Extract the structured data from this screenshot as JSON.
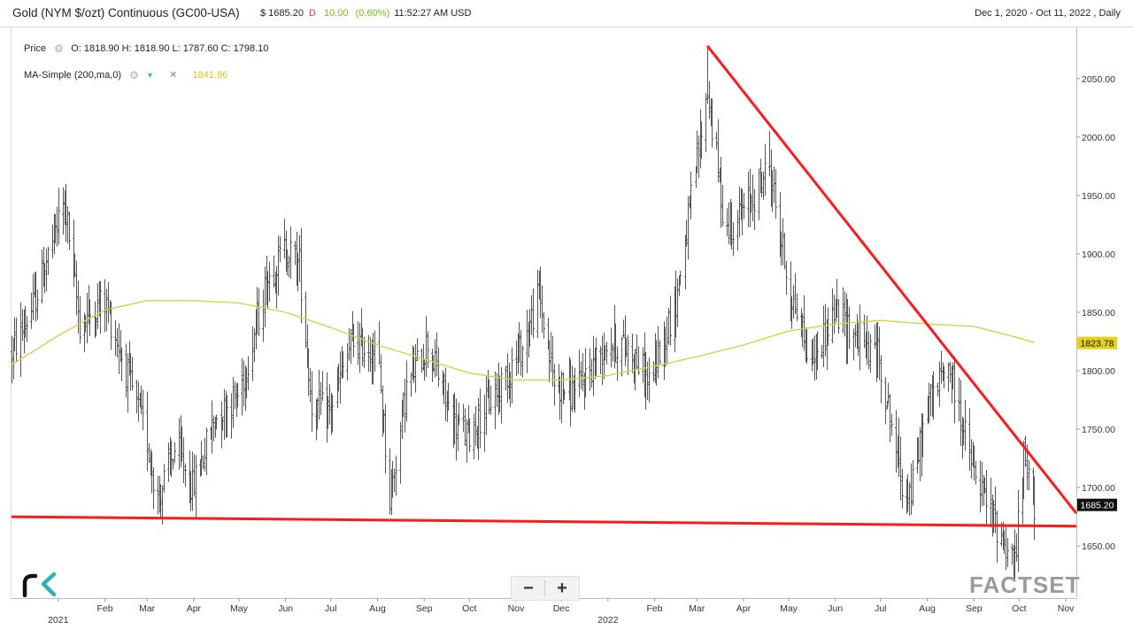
{
  "header": {
    "title": "Gold (NYM $/ozt) Continuous (GC00-USA)",
    "price": "$ 1685.20",
    "direction": "D",
    "change": "10.00",
    "change_pct": "(0.60%)",
    "time": "11:52:27 AM USD",
    "date_range": "Dec 1, 2020 - Oct 11, 2022 , Daily"
  },
  "legend": {
    "price_label": "Price",
    "ohlc": "O: 1818.90 H: 1818.90 L: 1787.60 C: 1798.10",
    "ma_label": "MA-Simple (200,ma,0)",
    "ma_value": "1841.96"
  },
  "badges": {
    "ma_last": "1823.78",
    "price_last": "1685.20"
  },
  "branding": {
    "factset": "FACTSET"
  },
  "zoom": {
    "minus": "−",
    "plus": "+"
  },
  "colors": {
    "price_bars": "#555555",
    "moving_average": "#d9cf4a",
    "trendlines": "#ff1a1a",
    "price_badge": "#111111",
    "ma_badge": "#e4d21a"
  },
  "chart_data": {
    "type": "ohlc-bar",
    "title": "Gold (NYM $/ozt) Continuous (GC00-USA)",
    "y_axis_side": "right",
    "ylim": [
      1610,
      2090
    ],
    "y_ticks": [
      1650,
      1700,
      1750,
      1800,
      1850,
      1900,
      1950,
      2000,
      2050
    ],
    "y_tick_labels": [
      "1650.00",
      "1700.00",
      "1750.00",
      "1800.00",
      "1850.00",
      "1900.00",
      "1950.00",
      "2000.00",
      "2050.00"
    ],
    "x_range": [
      "2020-12-01",
      "2022-11-08"
    ],
    "x_ticks": [
      {
        "date": "2021-01-01",
        "label": "2021",
        "year_label": true
      },
      {
        "date": "2021-02-01",
        "label": "Feb"
      },
      {
        "date": "2021-03-01",
        "label": "Mar"
      },
      {
        "date": "2021-04-01",
        "label": "Apr"
      },
      {
        "date": "2021-05-01",
        "label": "May"
      },
      {
        "date": "2021-06-01",
        "label": "Jun"
      },
      {
        "date": "2021-07-01",
        "label": "Jul"
      },
      {
        "date": "2021-08-01",
        "label": "Aug"
      },
      {
        "date": "2021-09-01",
        "label": "Sep"
      },
      {
        "date": "2021-10-01",
        "label": "Oct"
      },
      {
        "date": "2021-11-01",
        "label": "Nov"
      },
      {
        "date": "2021-12-01",
        "label": "Dec"
      },
      {
        "date": "2022-01-01",
        "label": "2022",
        "year_label": true
      },
      {
        "date": "2022-02-01",
        "label": "Feb"
      },
      {
        "date": "2022-03-01",
        "label": "Mar"
      },
      {
        "date": "2022-04-01",
        "label": "Apr"
      },
      {
        "date": "2022-05-01",
        "label": "May"
      },
      {
        "date": "2022-06-01",
        "label": "Jun"
      },
      {
        "date": "2022-07-01",
        "label": "Jul"
      },
      {
        "date": "2022-08-01",
        "label": "Aug"
      },
      {
        "date": "2022-09-01",
        "label": "Sep"
      },
      {
        "date": "2022-10-01",
        "label": "Oct"
      },
      {
        "date": "2022-11-01",
        "label": "Nov"
      }
    ],
    "price_path": [
      [
        "2020-12-01",
        1815
      ],
      [
        "2020-12-15",
        1855
      ],
      [
        "2021-01-05",
        1945
      ],
      [
        "2021-01-15",
        1840
      ],
      [
        "2021-02-01",
        1860
      ],
      [
        "2021-02-15",
        1800
      ],
      [
        "2021-03-01",
        1740
      ],
      [
        "2021-03-08",
        1690
      ],
      [
        "2021-03-20",
        1735
      ],
      [
        "2021-03-31",
        1700
      ],
      [
        "2021-04-15",
        1760
      ],
      [
        "2021-05-01",
        1780
      ],
      [
        "2021-05-20",
        1880
      ],
      [
        "2021-06-01",
        1905
      ],
      [
        "2021-06-10",
        1890
      ],
      [
        "2021-06-18",
        1770
      ],
      [
        "2021-06-30",
        1765
      ],
      [
        "2021-07-15",
        1825
      ],
      [
        "2021-08-01",
        1815
      ],
      [
        "2021-08-09",
        1690
      ],
      [
        "2021-08-20",
        1785
      ],
      [
        "2021-09-03",
        1825
      ],
      [
        "2021-09-20",
        1755
      ],
      [
        "2021-09-30",
        1745
      ],
      [
        "2021-10-20",
        1785
      ],
      [
        "2021-11-05",
        1820
      ],
      [
        "2021-11-16",
        1865
      ],
      [
        "2021-11-26",
        1790
      ],
      [
        "2021-12-10",
        1780
      ],
      [
        "2021-12-31",
        1825
      ],
      [
        "2022-01-15",
        1820
      ],
      [
        "2022-01-28",
        1790
      ],
      [
        "2022-02-15",
        1860
      ],
      [
        "2022-03-08",
        2040
      ],
      [
        "2022-03-20",
        1920
      ],
      [
        "2022-04-01",
        1935
      ],
      [
        "2022-04-18",
        1975
      ],
      [
        "2022-05-01",
        1870
      ],
      [
        "2022-05-16",
        1810
      ],
      [
        "2022-06-01",
        1850
      ],
      [
        "2022-06-15",
        1830
      ],
      [
        "2022-06-30",
        1810
      ],
      [
        "2022-07-15",
        1705
      ],
      [
        "2022-07-21",
        1695
      ],
      [
        "2022-08-01",
        1770
      ],
      [
        "2022-08-15",
        1805
      ],
      [
        "2022-09-01",
        1710
      ],
      [
        "2022-09-15",
        1670
      ],
      [
        "2022-09-28",
        1635
      ],
      [
        "2022-10-04",
        1725
      ],
      [
        "2022-10-11",
        1685
      ]
    ],
    "notable_extremes": [
      {
        "date": "2021-01-06",
        "high": 1960
      },
      {
        "date": "2021-03-08",
        "low": 1677
      },
      {
        "date": "2021-03-31",
        "low": 1680
      },
      {
        "date": "2021-06-01",
        "high": 1920
      },
      {
        "date": "2021-08-09",
        "low": 1677
      },
      {
        "date": "2022-03-08",
        "high": 2078
      },
      {
        "date": "2022-04-18",
        "high": 2005
      },
      {
        "date": "2022-09-28",
        "low": 1622
      },
      {
        "date": "2022-10-04",
        "high": 1740
      }
    ],
    "moving_average": {
      "name": "MA-Simple (200,ma,0)",
      "points": [
        [
          "2020-12-01",
          1805
        ],
        [
          "2021-01-01",
          1830
        ],
        [
          "2021-02-01",
          1852
        ],
        [
          "2021-03-01",
          1860
        ],
        [
          "2021-04-01",
          1860
        ],
        [
          "2021-05-01",
          1858
        ],
        [
          "2021-06-01",
          1850
        ],
        [
          "2021-07-01",
          1837
        ],
        [
          "2021-08-01",
          1822
        ],
        [
          "2021-09-01",
          1810
        ],
        [
          "2021-10-01",
          1798
        ],
        [
          "2021-11-01",
          1792
        ],
        [
          "2021-12-01",
          1792
        ],
        [
          "2022-01-01",
          1796
        ],
        [
          "2022-02-01",
          1804
        ],
        [
          "2022-03-01",
          1812
        ],
        [
          "2022-04-01",
          1822
        ],
        [
          "2022-05-01",
          1834
        ],
        [
          "2022-06-01",
          1840
        ],
        [
          "2022-07-01",
          1843
        ],
        [
          "2022-08-01",
          1840
        ],
        [
          "2022-09-01",
          1838
        ],
        [
          "2022-10-01",
          1828
        ],
        [
          "2022-10-11",
          1824
        ]
      ]
    },
    "trendlines": [
      {
        "from": [
          "2020-12-01",
          1675
        ],
        "to": [
          "2022-11-08",
          1667
        ]
      },
      {
        "from": [
          "2022-03-08",
          2078
        ],
        "to": [
          "2022-11-08",
          1678
        ]
      }
    ]
  }
}
